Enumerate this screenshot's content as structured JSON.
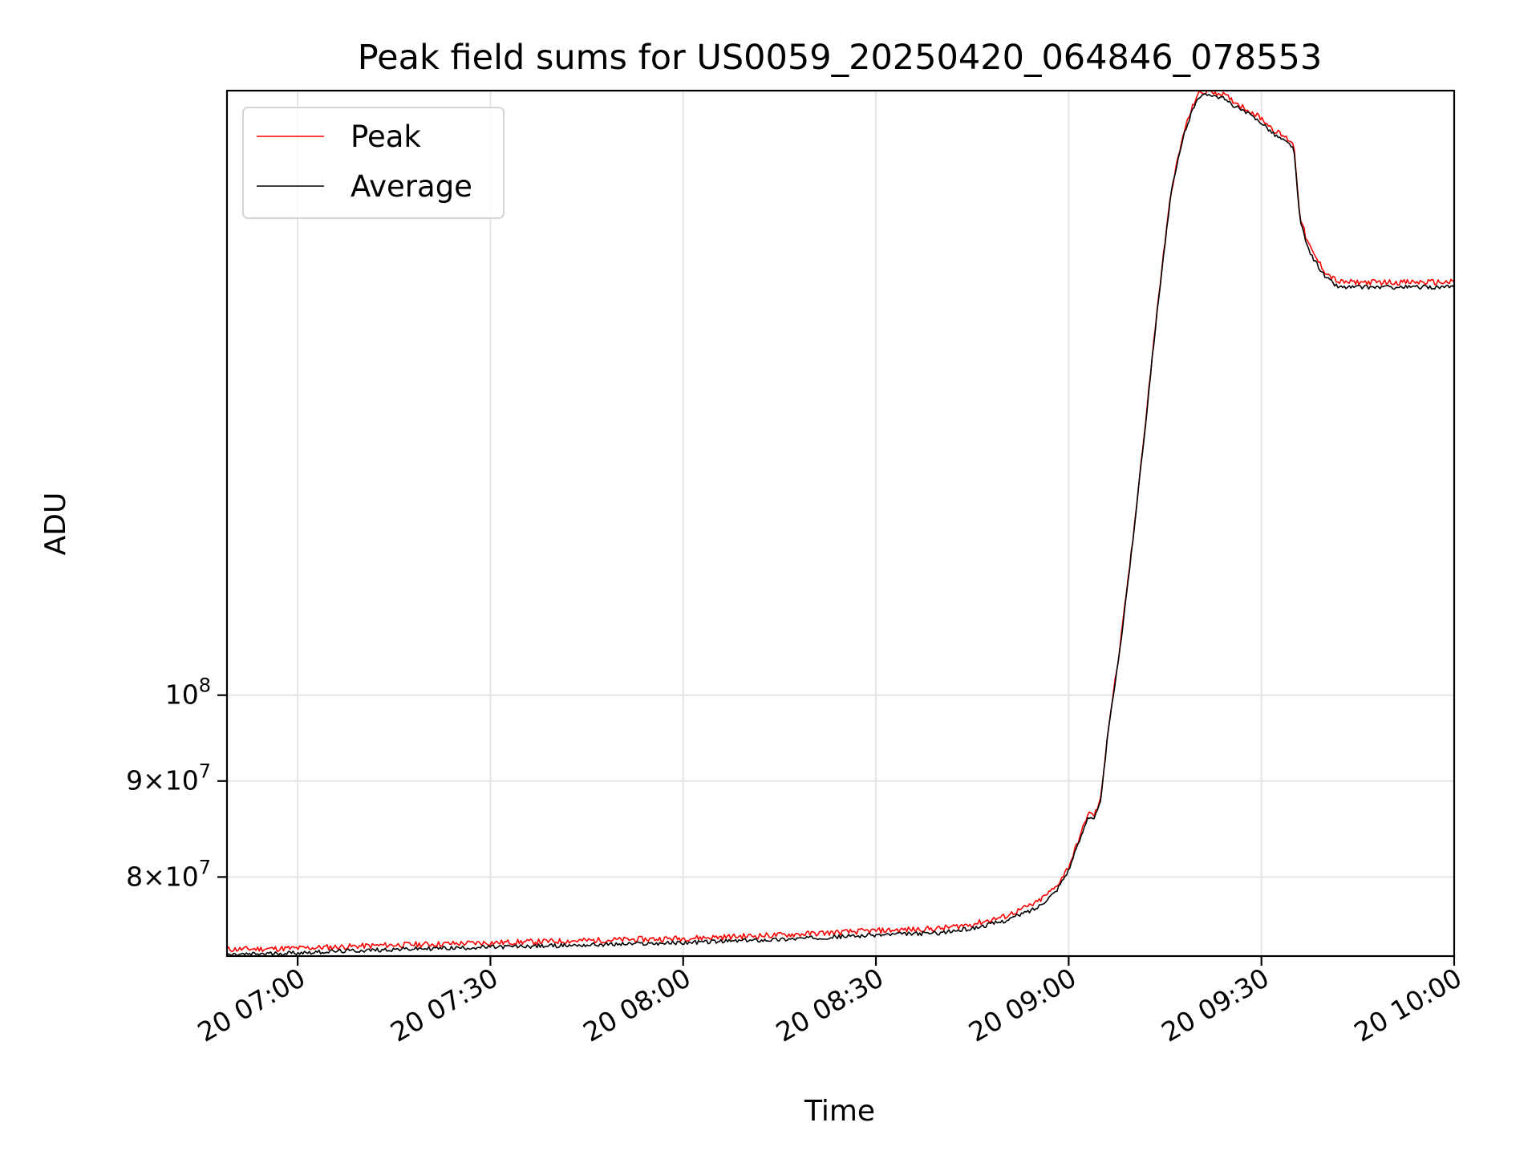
{
  "chart_data": {
    "type": "line",
    "title": "Peak field sums for US0059_20250420_064846_078553",
    "xlabel": "Time",
    "ylabel": "ADU",
    "yscale": "log",
    "xlim": [
      "2025-04-20 06:49",
      "2025-04-20 10:00"
    ],
    "ylim": [
      72600000,
      210000000
    ],
    "x_ticks": [
      "20 07:00",
      "20 07:30",
      "20 08:00",
      "20 08:30",
      "20 09:00",
      "20 09:30",
      "20 10:00"
    ],
    "x_tick_times": [
      "2025-04-20 07:00",
      "2025-04-20 07:30",
      "2025-04-20 08:00",
      "2025-04-20 08:30",
      "2025-04-20 09:00",
      "2025-04-20 09:30",
      "2025-04-20 10:00"
    ],
    "y_ticks": [
      {
        "value": 80000000,
        "mantissa": "8",
        "base": "10",
        "exponent": "7"
      },
      {
        "value": 90000000,
        "mantissa": "9",
        "base": "10",
        "exponent": "7"
      },
      {
        "value": 100000000,
        "mantissa": "",
        "base": "10",
        "exponent": "8"
      }
    ],
    "grid": true,
    "legend": {
      "position": "top-left"
    },
    "x": [
      "06:49",
      "07:00",
      "07:15",
      "07:30",
      "07:45",
      "08:00",
      "08:15",
      "08:30",
      "08:40",
      "08:45",
      "08:50",
      "08:55",
      "08:58",
      "09:00",
      "09:02",
      "09:03",
      "09:04",
      "09:05",
      "09:06",
      "09:08",
      "09:10",
      "09:12",
      "09:14",
      "09:16",
      "09:18",
      "09:20",
      "09:22",
      "09:24",
      "09:26",
      "09:28",
      "09:30",
      "09:32",
      "09:35",
      "09:36",
      "09:37",
      "09:38",
      "09:40",
      "09:42",
      "09:45",
      "09:50",
      "09:55",
      "10:00"
    ],
    "series": [
      {
        "name": "Peak",
        "color": "#ff0000",
        "values": [
          73200000,
          73300000,
          73600000,
          73800000,
          74000000,
          74200000,
          74500000,
          74900000,
          75100000,
          75500000,
          76200000,
          77500000,
          79000000,
          81000000,
          84500000,
          86500000,
          86300000,
          88000000,
          95000000,
          106000000,
          121000000,
          140000000,
          163000000,
          186000000,
          200000000,
          209000000,
          210000000,
          209000000,
          207000000,
          205000000,
          203000000,
          200000000,
          197000000,
          180000000,
          175000000,
          172000000,
          168000000,
          166000000,
          166000000,
          166000000,
          166000000,
          166000000
        ]
      },
      {
        "name": "Average",
        "color": "#000000",
        "values": [
          72700000,
          72900000,
          73200000,
          73400000,
          73600000,
          73800000,
          74100000,
          74500000,
          74700000,
          75100000,
          75800000,
          77000000,
          78600000,
          80700000,
          84200000,
          86200000,
          86000000,
          87700000,
          94700000,
          105800000,
          120800000,
          139800000,
          162700000,
          185600000,
          199300000,
          208200000,
          209200000,
          208000000,
          205900000,
          204000000,
          202000000,
          199000000,
          196000000,
          179000000,
          174000000,
          171000000,
          167000000,
          165000000,
          165000000,
          165000000,
          165000000,
          165000000
        ]
      }
    ]
  }
}
